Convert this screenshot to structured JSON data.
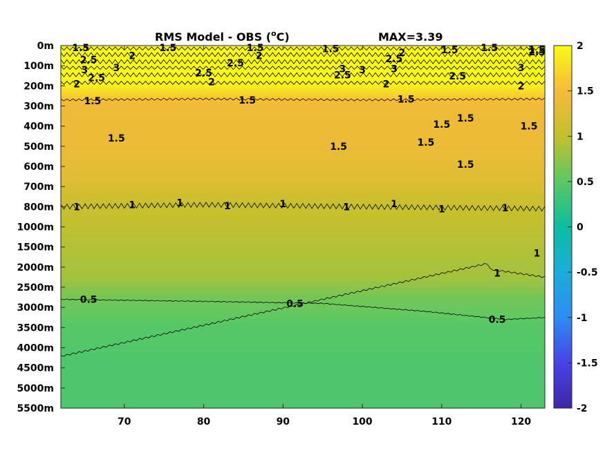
{
  "chart_data": {
    "type": "heatmap",
    "title": "RMS Model - OBS (",
    "title_unit_sup": "o",
    "title_unit": "C)",
    "max_label": "MAX=3.39",
    "xlabel": "",
    "ylabel": "",
    "x_ticks": [
      70,
      80,
      90,
      100,
      110,
      120
    ],
    "xlim": [
      62,
      123
    ],
    "y_tick_labels": [
      "0m",
      "100m",
      "200m",
      "300m",
      "400m",
      "500m",
      "600m",
      "700m",
      "800m",
      "1000m",
      "1500m",
      "2000m",
      "2500m",
      "3000m",
      "3500m",
      "4000m",
      "4500m",
      "5000m",
      "5500m"
    ],
    "colorbar": {
      "ticks": [
        2,
        1.5,
        1,
        0.5,
        0,
        -0.5,
        -1,
        -1.5,
        -2
      ],
      "tick_labels": [
        "2",
        "1.5",
        "1",
        "0.5",
        "0",
        "-0.5",
        "-1",
        "-1.5",
        "-2"
      ],
      "clim": [
        -2,
        2
      ],
      "colormap": "parula"
    },
    "level_profile": [
      {
        "depth_index": 0,
        "value": 2.3
      },
      {
        "depth_index": 1,
        "value": 2.1
      },
      {
        "depth_index": 2,
        "value": 1.9
      },
      {
        "depth_index": 2.8,
        "value": 1.5
      },
      {
        "depth_index": 3.5,
        "value": 1.4
      },
      {
        "depth_index": 5,
        "value": 1.4
      },
      {
        "depth_index": 6.5,
        "value": 1.3
      },
      {
        "depth_index": 7.9,
        "value": 1.05
      },
      {
        "depth_index": 9,
        "value": 0.98
      },
      {
        "depth_index": 10,
        "value": 0.92
      },
      {
        "depth_index": 11.5,
        "value": 0.85
      },
      {
        "depth_index": 12.5,
        "value": 0.62
      },
      {
        "depth_index": 14,
        "value": 0.46
      },
      {
        "depth_index": 16,
        "value": 0.42
      },
      {
        "depth_index": 18,
        "value": 0.42
      }
    ],
    "contour_levels": [
      0.5,
      1,
      1.5,
      2,
      2.5,
      3
    ],
    "contour_labels": [
      {
        "text": "1.5",
        "x": 64.5,
        "y": 0.1
      },
      {
        "text": "1.5",
        "x": 75.5,
        "y": 0.1
      },
      {
        "text": "1.5",
        "x": 86.5,
        "y": 0.1
      },
      {
        "text": "1.5",
        "x": 96,
        "y": 0.15
      },
      {
        "text": "1.5",
        "x": 111,
        "y": 0.2
      },
      {
        "text": "1.5",
        "x": 116,
        "y": 0.1
      },
      {
        "text": "1.5",
        "x": 122,
        "y": 0.2
      },
      {
        "text": "2",
        "x": 71,
        "y": 0.5
      },
      {
        "text": "2",
        "x": 87,
        "y": 0.5
      },
      {
        "text": "2",
        "x": 105,
        "y": 0.35
      },
      {
        "text": "2",
        "x": 64,
        "y": 1.9
      },
      {
        "text": "2",
        "x": 81,
        "y": 1.8
      },
      {
        "text": "2",
        "x": 103,
        "y": 1.9
      },
      {
        "text": "2",
        "x": 120,
        "y": 2.0
      },
      {
        "text": "2.5",
        "x": 65.5,
        "y": 0.7
      },
      {
        "text": "2.5",
        "x": 84,
        "y": 0.85
      },
      {
        "text": "2.5",
        "x": 104,
        "y": 0.65
      },
      {
        "text": "2.5",
        "x": 66.5,
        "y": 1.6
      },
      {
        "text": "2.5",
        "x": 80,
        "y": 1.35
      },
      {
        "text": "2.5",
        "x": 97.5,
        "y": 1.45
      },
      {
        "text": "2.5",
        "x": 112,
        "y": 1.5
      },
      {
        "text": "2.5",
        "x": 122,
        "y": 0.3
      },
      {
        "text": "3",
        "x": 65,
        "y": 1.2
      },
      {
        "text": "3",
        "x": 69,
        "y": 1.1
      },
      {
        "text": "3",
        "x": 97.5,
        "y": 1.15
      },
      {
        "text": "3",
        "x": 100,
        "y": 1.2
      },
      {
        "text": "3",
        "x": 104,
        "y": 1.15
      },
      {
        "text": "3",
        "x": 120,
        "y": 1.1
      },
      {
        "text": "1.5",
        "x": 66,
        "y": 2.75
      },
      {
        "text": "1.5",
        "x": 85.5,
        "y": 2.7
      },
      {
        "text": "1.5",
        "x": 105.5,
        "y": 2.65
      },
      {
        "text": "1.5",
        "x": 69,
        "y": 4.6
      },
      {
        "text": "1.5",
        "x": 97,
        "y": 5
      },
      {
        "text": "1.5",
        "x": 108,
        "y": 4.8
      },
      {
        "text": "1.5",
        "x": 110,
        "y": 3.9
      },
      {
        "text": "1.5",
        "x": 113,
        "y": 3.6
      },
      {
        "text": "1.5",
        "x": 121,
        "y": 4.0
      },
      {
        "text": "1.5",
        "x": 113,
        "y": 5.9
      },
      {
        "text": "1",
        "x": 64,
        "y": 8
      },
      {
        "text": "1",
        "x": 71,
        "y": 7.9
      },
      {
        "text": "1",
        "x": 77,
        "y": 7.8
      },
      {
        "text": "1",
        "x": 83,
        "y": 7.95
      },
      {
        "text": "1",
        "x": 90,
        "y": 7.85
      },
      {
        "text": "1",
        "x": 98,
        "y": 8
      },
      {
        "text": "1",
        "x": 104,
        "y": 7.85
      },
      {
        "text": "1",
        "x": 110,
        "y": 8.1
      },
      {
        "text": "1",
        "x": 118,
        "y": 8.05
      },
      {
        "text": "1",
        "x": 122,
        "y": 10.3
      },
      {
        "text": "1",
        "x": 117,
        "y": 11.3
      },
      {
        "text": "0.5",
        "x": 65.5,
        "y": 12.6
      },
      {
        "text": "0.5",
        "x": 91.5,
        "y": 12.8
      },
      {
        "text": "0.5",
        "x": 117,
        "y": 13.6
      }
    ]
  }
}
